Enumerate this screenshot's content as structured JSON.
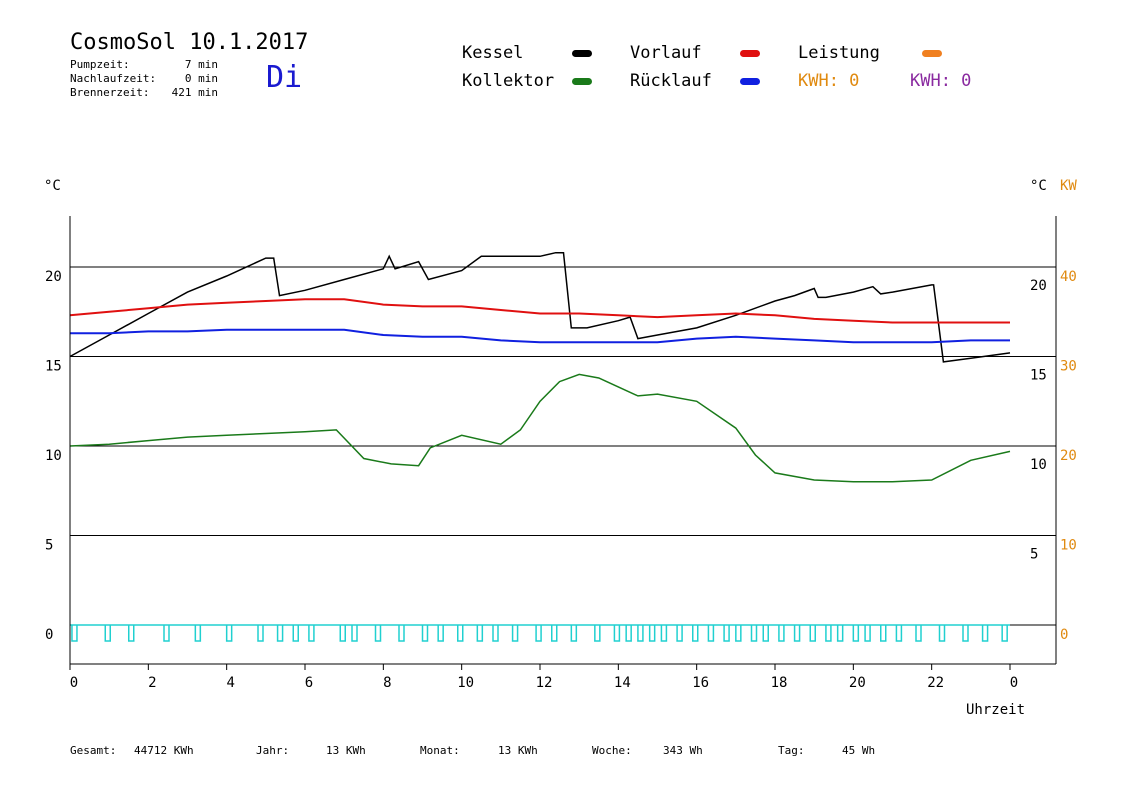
{
  "header": {
    "title": "CosmoSol 10.1.2017",
    "day": "Di",
    "stats": [
      {
        "label": "Pumpzeit:",
        "value": "7 min"
      },
      {
        "label": "Nachlaufzeit:",
        "value": "0 min"
      },
      {
        "label": "Brennerzeit:",
        "value": "421 min"
      }
    ]
  },
  "legend": {
    "kessel": "Kessel",
    "kollektor": "Kollektor",
    "vorlauf": "Vorlauf",
    "ruecklauf": "Rücklauf",
    "leistung": "Leistung",
    "kwh_orange": "KWH: 0",
    "kwh_purple": "KWH: 0"
  },
  "axes": {
    "left_unit": "°C",
    "right_unit_c": "°C",
    "right_unit_kw": "KW",
    "xlabel": "Uhrzeit"
  },
  "footer": [
    {
      "label": "Gesamt:",
      "value": "44712 KWh"
    },
    {
      "label": "Jahr:",
      "value": "13 KWh"
    },
    {
      "label": "Monat:",
      "value": "13 KWh"
    },
    {
      "label": "Woche:",
      "value": "343 Wh"
    },
    {
      "label": "Tag:",
      "value": "45 Wh"
    }
  ],
  "colors": {
    "kessel": "#000000",
    "kollektor": "#1a7a1a",
    "vorlauf": "#e01010",
    "ruecklauf": "#1020e0",
    "leistung": "#f08020",
    "kw_axis": "#e08a10",
    "kwh_purple": "#8a2aa0",
    "pump": "#20d0d0",
    "day": "#1a1ad0"
  },
  "chart_data": {
    "type": "line",
    "x_ticks": [
      "0",
      "2",
      "4",
      "6",
      "8",
      "10",
      "12",
      "14",
      "16",
      "18",
      "20",
      "22",
      "0"
    ],
    "xlim": [
      0,
      24
    ],
    "ylim": [
      -1,
      23
    ],
    "y_ticks_left": [
      "20",
      "15",
      "10",
      "5",
      "0"
    ],
    "y_ticks_right_c": [
      "20",
      "15",
      "10",
      "5"
    ],
    "y_ticks_right_kw": [
      "40",
      "30",
      "20",
      "10",
      "0"
    ],
    "series": [
      {
        "name": "Kessel",
        "key": "kessel",
        "x": [
          0,
          1,
          2,
          3,
          4,
          5,
          5.2,
          5.35,
          6,
          7,
          8,
          8.15,
          8.3,
          8.9,
          9.15,
          10,
          10.5,
          11,
          12,
          12.4,
          12.6,
          12.8,
          13.2,
          14,
          14.3,
          14.5,
          15,
          16,
          17,
          18,
          18.5,
          19,
          19.1,
          19.3,
          20,
          20.5,
          20.7,
          21,
          22,
          22.05,
          22.3,
          23,
          24
        ],
        "y": [
          15,
          16.2,
          17.4,
          18.6,
          19.5,
          20.5,
          20.5,
          18.4,
          18.7,
          19.3,
          19.9,
          20.6,
          19.9,
          20.3,
          19.3,
          19.8,
          20.6,
          20.6,
          20.6,
          20.8,
          20.8,
          16.6,
          16.6,
          17.0,
          17.2,
          16.0,
          16.2,
          16.6,
          17.3,
          18.1,
          18.4,
          18.8,
          18.3,
          18.3,
          18.6,
          18.9,
          18.5,
          18.6,
          19.0,
          19.0,
          14.7,
          14.9,
          15.2
        ]
      },
      {
        "name": "Vorlauf",
        "key": "vorlauf",
        "x": [
          0,
          1,
          2,
          3,
          4,
          5,
          6,
          7,
          8,
          9,
          10,
          11,
          12,
          13,
          14,
          15,
          16,
          17,
          18,
          19,
          20,
          21,
          22,
          23,
          24
        ],
        "y": [
          17.3,
          17.5,
          17.7,
          17.9,
          18.0,
          18.1,
          18.2,
          18.2,
          17.9,
          17.8,
          17.8,
          17.6,
          17.4,
          17.4,
          17.3,
          17.2,
          17.3,
          17.4,
          17.3,
          17.1,
          17.0,
          16.9,
          16.9,
          16.9,
          16.9
        ]
      },
      {
        "name": "Rücklauf",
        "key": "ruecklauf",
        "x": [
          0,
          1,
          2,
          3,
          4,
          5,
          6,
          7,
          8,
          9,
          10,
          11,
          12,
          13,
          14,
          15,
          16,
          17,
          18,
          19,
          20,
          21,
          22,
          23,
          24
        ],
        "y": [
          16.3,
          16.3,
          16.4,
          16.4,
          16.5,
          16.5,
          16.5,
          16.5,
          16.2,
          16.1,
          16.1,
          15.9,
          15.8,
          15.8,
          15.8,
          15.8,
          16.0,
          16.1,
          16.0,
          15.9,
          15.8,
          15.8,
          15.8,
          15.9,
          15.9
        ]
      },
      {
        "name": "Kollektor",
        "key": "kollektor",
        "x": [
          0,
          1,
          2,
          3,
          4,
          5,
          6,
          6.8,
          7.5,
          8.2,
          8.9,
          9.2,
          10,
          11,
          11.5,
          12,
          12.5,
          13,
          13.5,
          14,
          14.5,
          15,
          16,
          17,
          17.5,
          18,
          19,
          20,
          21,
          22,
          23,
          24
        ],
        "y": [
          10.0,
          10.1,
          10.3,
          10.5,
          10.6,
          10.7,
          10.8,
          10.9,
          9.3,
          9.0,
          8.9,
          9.9,
          10.6,
          10.1,
          10.9,
          12.5,
          13.6,
          14.0,
          13.8,
          13.3,
          12.8,
          12.9,
          12.5,
          11.0,
          9.5,
          8.5,
          8.1,
          8.0,
          8.0,
          8.1,
          9.2,
          9.7
        ]
      }
    ],
    "pump_pulse_hours": [
      0.05,
      0.9,
      1.5,
      2.4,
      3.2,
      4.0,
      4.8,
      5.3,
      5.7,
      6.1,
      6.9,
      7.2,
      7.8,
      8.4,
      9.0,
      9.4,
      9.9,
      10.4,
      10.8,
      11.3,
      11.9,
      12.3,
      12.8,
      13.4,
      13.9,
      14.2,
      14.5,
      14.8,
      15.1,
      15.5,
      15.9,
      16.3,
      16.7,
      17.0,
      17.4,
      17.7,
      18.1,
      18.5,
      18.9,
      19.3,
      19.6,
      20.0,
      20.3,
      20.7,
      21.1,
      21.6,
      22.2,
      22.8,
      23.3,
      23.8
    ],
    "grid": "horizontal"
  }
}
